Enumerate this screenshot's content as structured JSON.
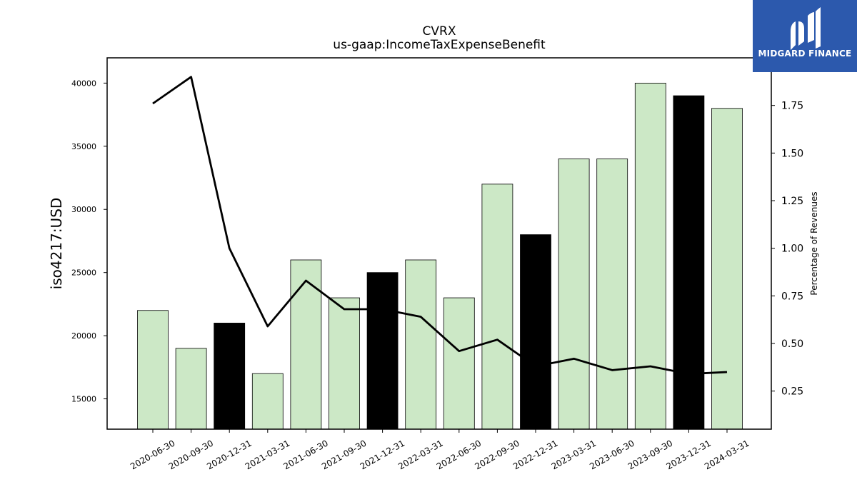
{
  "chart_data": {
    "type": "bar",
    "title": "CVRX",
    "subtitle": "us-gaap:IncomeTaxExpenseBenefit",
    "ylabel": "iso4217:USD",
    "y2label": "Percentage of Revenues",
    "categories": [
      "2020-06-30",
      "2020-09-30",
      "2020-12-31",
      "2021-03-31",
      "2021-06-30",
      "2021-09-30",
      "2021-12-31",
      "2022-03-31",
      "2022-06-30",
      "2022-09-30",
      "2022-12-31",
      "2023-03-31",
      "2023-06-30",
      "2023-09-30",
      "2023-12-31",
      "2024-03-31"
    ],
    "values": [
      22000,
      19000,
      21000,
      17000,
      26000,
      23000,
      25000,
      26000,
      23000,
      32000,
      28000,
      34000,
      34000,
      40000,
      39000,
      38000
    ],
    "bar_colors": [
      "#cce8c6",
      "#cce8c6",
      "#000000",
      "#cce8c6",
      "#cce8c6",
      "#cce8c6",
      "#000000",
      "#cce8c6",
      "#cce8c6",
      "#cce8c6",
      "#000000",
      "#cce8c6",
      "#cce8c6",
      "#cce8c6",
      "#000000",
      "#cce8c6"
    ],
    "line_series": {
      "values": [
        1.76,
        1.9,
        1.0,
        0.59,
        0.83,
        0.68,
        0.68,
        0.64,
        0.46,
        0.52,
        0.38,
        0.42,
        0.36,
        0.38,
        0.34,
        0.35
      ],
      "color": "#000000"
    },
    "ylim": [
      12600,
      42000
    ],
    "yticks": [
      15000,
      20000,
      25000,
      30000,
      35000,
      40000
    ],
    "y2lim": [
      0.05,
      2.0
    ],
    "y2ticks": [
      0.25,
      0.5,
      0.75,
      1.0,
      1.25,
      1.5,
      1.75
    ],
    "grid": false
  },
  "logo": {
    "text": "MIDGARD FINANCE",
    "color": "#2c59ad"
  }
}
